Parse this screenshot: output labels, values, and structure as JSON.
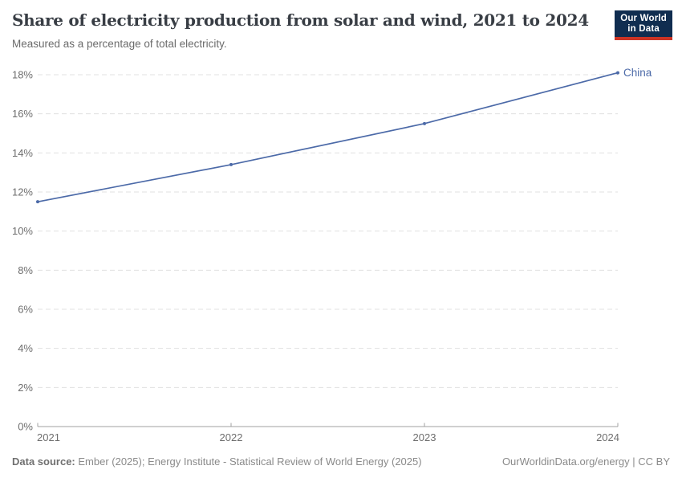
{
  "header": {
    "title": "Share of electricity production from solar and wind, 2021 to 2024",
    "subtitle": "Measured as a percentage of total electricity.",
    "logo": {
      "line1": "Our World",
      "line2": "in Data"
    }
  },
  "footer": {
    "source_label": "Data source:",
    "source_text": " Ember (2025); Energy Institute - Statistical Review of World Energy (2025)",
    "credit": "OurWorldinData.org/energy | CC BY"
  },
  "colors": {
    "line": "#4C6AA8",
    "title": "#383d44",
    "subtitle": "#6b6b6b",
    "axis": "#a0a0a0",
    "gridline": "#e0e0e0",
    "tick_label": "#6e6e6e",
    "footer_text": "#8a8a8a",
    "logo_bg": "#102d50",
    "logo_accent": "#cc3425"
  },
  "chart_data": {
    "type": "line",
    "title": "Share of electricity production from solar and wind, 2021 to 2024",
    "subtitle": "Measured as a percentage of total electricity.",
    "x": [
      2021,
      2022,
      2023,
      2024
    ],
    "series": [
      {
        "name": "China",
        "values": [
          11.5,
          13.4,
          15.5,
          18.1
        ]
      }
    ],
    "xlabel": "",
    "ylabel": "",
    "ylim": [
      0,
      18
    ],
    "ytick_step": 2,
    "ytick_suffix": "%",
    "xtick_labels": [
      "2021",
      "2022",
      "2023",
      "2024"
    ],
    "grid": "horizontal-dashed",
    "legend": "line-end-label"
  }
}
